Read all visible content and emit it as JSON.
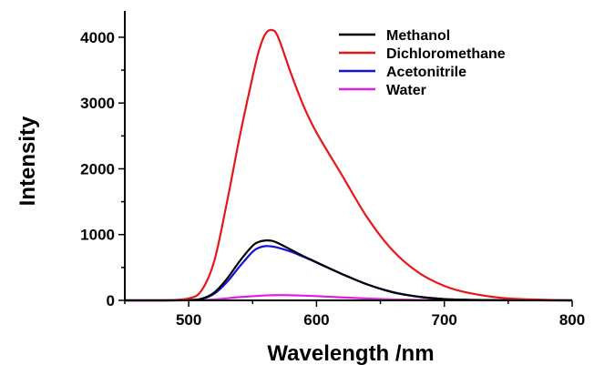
{
  "chart_data": {
    "type": "line",
    "title": "",
    "xlabel": "Wavelength /nm",
    "ylabel": "Intensity",
    "xlim": [
      450,
      800
    ],
    "ylim": [
      0,
      4400
    ],
    "xticks": [
      500,
      600,
      700,
      800
    ],
    "yticks": [
      0,
      1000,
      2000,
      3000,
      4000
    ],
    "grid": false,
    "legend_position": "top-right",
    "series": [
      {
        "name": "Methanol",
        "color": "#000000",
        "x": [
          450,
          480,
          500,
          510,
          520,
          530,
          540,
          550,
          555,
          560,
          565,
          570,
          580,
          590,
          600,
          620,
          640,
          660,
          680,
          700,
          720,
          750,
          800
        ],
        "y": [
          0,
          0,
          5,
          25,
          120,
          330,
          600,
          830,
          890,
          910,
          905,
          870,
          770,
          670,
          580,
          400,
          240,
          120,
          55,
          20,
          8,
          2,
          0
        ]
      },
      {
        "name": "Dichloromethane",
        "color": "#e8151b",
        "x": [
          450,
          480,
          500,
          510,
          520,
          530,
          540,
          550,
          555,
          560,
          565,
          570,
          580,
          590,
          600,
          620,
          640,
          660,
          680,
          700,
          720,
          750,
          800
        ],
        "y": [
          0,
          0,
          30,
          150,
          600,
          1500,
          2500,
          3400,
          3800,
          4050,
          4110,
          4000,
          3450,
          2950,
          2550,
          1900,
          1250,
          750,
          420,
          220,
          110,
          30,
          0
        ]
      },
      {
        "name": "Acetonitrile",
        "color": "#1212e0",
        "x": [
          450,
          480,
          500,
          510,
          520,
          530,
          540,
          550,
          555,
          560,
          565,
          570,
          580,
          590,
          600,
          620,
          640,
          660,
          680,
          700,
          720,
          750,
          800
        ],
        "y": [
          0,
          0,
          5,
          20,
          100,
          280,
          520,
          740,
          800,
          825,
          820,
          800,
          740,
          660,
          575,
          400,
          240,
          125,
          55,
          20,
          8,
          2,
          0
        ]
      },
      {
        "name": "Water",
        "color": "#e020e0",
        "x": [
          450,
          480,
          500,
          520,
          540,
          560,
          570,
          580,
          600,
          620,
          640,
          660,
          680,
          700,
          720,
          750,
          800
        ],
        "y": [
          0,
          0,
          2,
          15,
          50,
          75,
          80,
          78,
          65,
          45,
          28,
          15,
          7,
          3,
          1,
          0,
          0
        ]
      }
    ]
  }
}
